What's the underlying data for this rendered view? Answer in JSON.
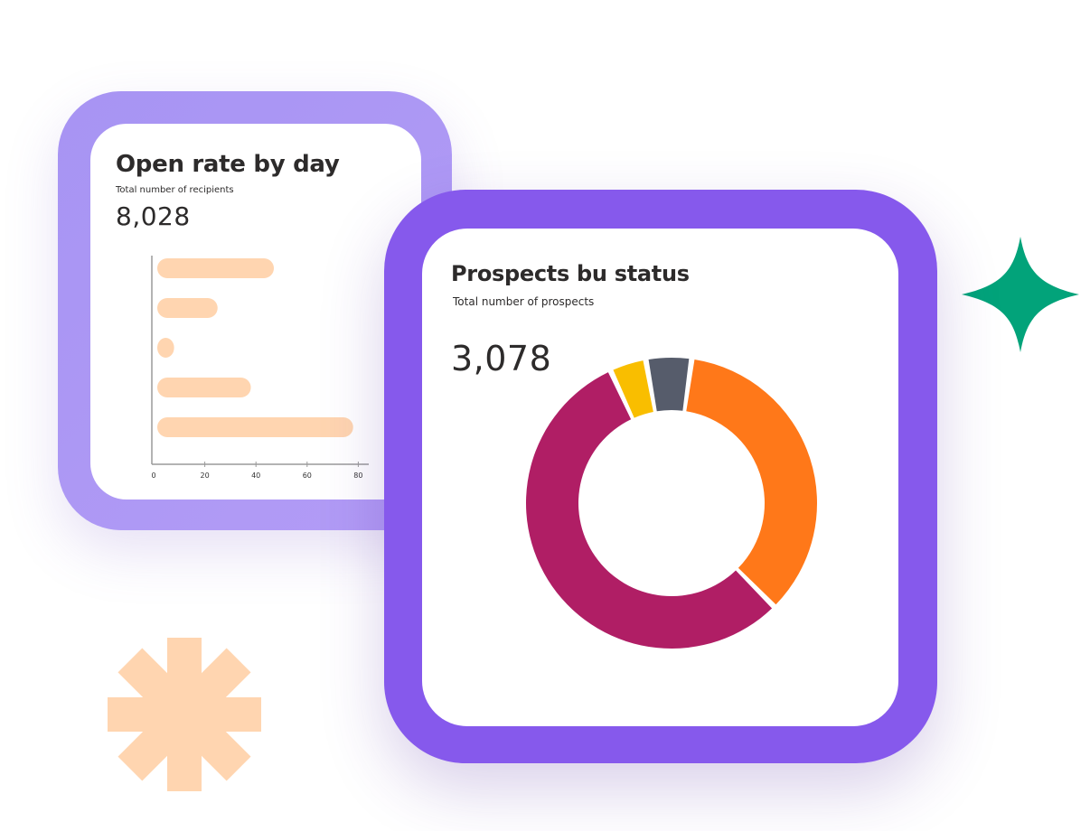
{
  "colors": {
    "bar_frame_start": "#a794f3",
    "bar_frame_end": "#b39cf6",
    "donut_frame": "#8659ec",
    "bar_fill": "#ffd5b0",
    "axis": "#9a9a9a",
    "text": "#2d2b2b",
    "sparkle": "#02a37a",
    "asterisk": "#ffd5b0"
  },
  "icons": {
    "sparkle": "four-point-star-icon",
    "asterisk": "asterisk-icon"
  },
  "chart_data": [
    {
      "type": "bar",
      "orientation": "horizontal",
      "title": "Open rate by day",
      "subtitle": "Total number of recipients",
      "headline_value": "8,028",
      "categories": [
        "",
        "",
        "",
        "",
        ""
      ],
      "values": [
        47,
        25,
        8,
        38,
        78
      ],
      "xlim": [
        0,
        84
      ],
      "xticks": [
        0,
        20,
        40,
        60,
        80
      ],
      "xtick_labels": [
        "0",
        "20",
        "40",
        "60",
        "80"
      ],
      "grid": false,
      "color": "#ffd5b0"
    },
    {
      "type": "pie",
      "donut": true,
      "title": "Prospects bu status",
      "subtitle": "Total number of prospects",
      "headline_value": "3,078",
      "values": [
        35,
        55,
        4,
        5
      ],
      "colors": [
        "#ff7819",
        "#b01e65",
        "#f9be00",
        "#565c6b"
      ],
      "legend": "none"
    }
  ]
}
